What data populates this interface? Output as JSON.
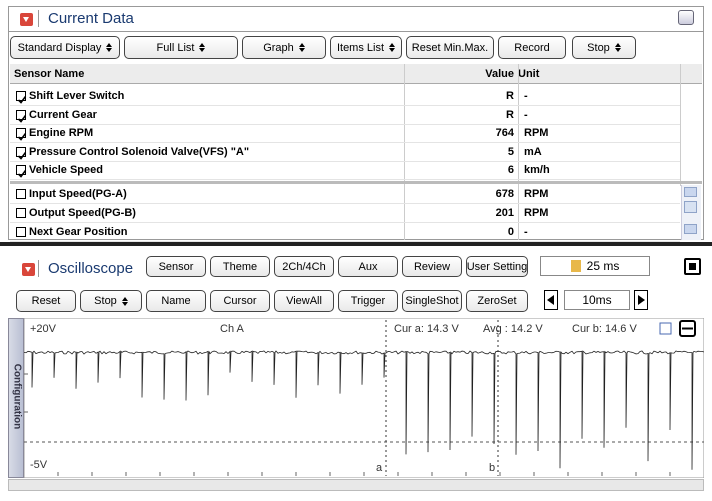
{
  "current_data": {
    "title": "Current Data",
    "toolbar": [
      {
        "label": "Standard Display",
        "dropdown": true
      },
      {
        "label": "Full List",
        "dropdown": true
      },
      {
        "label": "Graph",
        "dropdown": true
      },
      {
        "label": "Items List",
        "dropdown": true
      },
      {
        "label": "Reset Min.Max.",
        "dropdown": false
      },
      {
        "label": "Record",
        "dropdown": false
      },
      {
        "label": "Stop",
        "dropdown": true
      }
    ],
    "columns": [
      "Sensor Name",
      "Value",
      "Unit"
    ],
    "fixed_rows": [
      {
        "checked": true,
        "name": "Shift Lever Switch",
        "value": "R",
        "unit": "-"
      },
      {
        "checked": true,
        "name": "Current Gear",
        "value": "R",
        "unit": "-"
      },
      {
        "checked": true,
        "name": "Engine RPM",
        "value": 764,
        "unit": "RPM"
      },
      {
        "checked": true,
        "name": "Pressure Control Solenoid Valve(VFS) \"A\"",
        "value": 5,
        "unit": "mA"
      },
      {
        "checked": true,
        "name": "Vehicle Speed",
        "value": 6,
        "unit": "km/h"
      }
    ],
    "rows": [
      {
        "checked": false,
        "name": "Input Speed(PG-A)",
        "value": 678,
        "unit": "RPM"
      },
      {
        "checked": false,
        "name": "Output Speed(PG-B)",
        "value": 201,
        "unit": "RPM"
      },
      {
        "checked": false,
        "name": "Next Gear Position",
        "value": 0,
        "unit": "-"
      }
    ]
  },
  "oscilloscope": {
    "title": "Oscilloscope",
    "toolbar1": [
      {
        "label": "Sensor",
        "dropdown": false
      },
      {
        "label": "Theme",
        "dropdown": false
      },
      {
        "label": "2Ch/4Ch",
        "dropdown": false
      },
      {
        "label": "Aux",
        "dropdown": false
      },
      {
        "label": "Review",
        "dropdown": false
      },
      {
        "label": "User Setting",
        "dropdown": false
      }
    ],
    "time_per_div": "25 ms",
    "toolbar2": [
      {
        "label": "Reset",
        "dropdown": false
      },
      {
        "label": "Stop",
        "dropdown": true
      },
      {
        "label": "Name",
        "dropdown": false
      },
      {
        "label": "Cursor",
        "dropdown": false
      },
      {
        "label": "ViewAll",
        "dropdown": false
      },
      {
        "label": "Trigger",
        "dropdown": false
      },
      {
        "label": "SingleShot",
        "dropdown": false
      },
      {
        "label": "ZeroSet",
        "dropdown": false
      }
    ],
    "timebase": "10ms",
    "side_tab": "Configuration",
    "y_max_label": "+20V",
    "y_min_label": "-5V",
    "channel": "Ch A",
    "cursor_a": "Cur a: 14.3 V",
    "average": "Avg : 14.2 V",
    "cursor_b": "Cur b: 14.6 V",
    "cursor_a_label": "a",
    "cursor_b_label": "b"
  }
}
